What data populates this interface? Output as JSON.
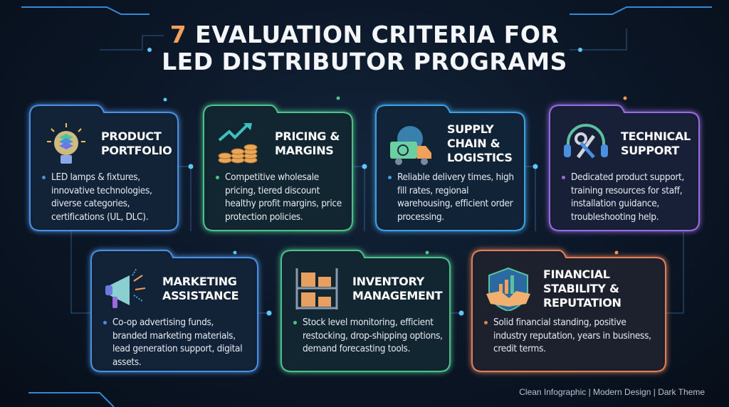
{
  "title": {
    "number": "7",
    "line1": "EVALUATION CRITERIA FOR",
    "line2": "LED DISTRIBUTOR PROGRAMS"
  },
  "cards": [
    {
      "title": "Product Portfolio",
      "text": "LED lamps & fixtures, innovative technologies, diverse categories, certifications (UL, DLC).",
      "color": "#4a8fe0",
      "icon": "lightbulb-icon"
    },
    {
      "title": "Pricing & Margins",
      "text": "Competitive wholesale pricing, tiered discount healthy profit margins, price protection policies.",
      "color": "#4cc28a",
      "icon": "coins-growth-icon"
    },
    {
      "title": "Supply Chain & Logistics",
      "text": "Reliable delivery times, high fill rates, regional warehousing, efficient order processing.",
      "color": "#3f9fe0",
      "icon": "delivery-truck-globe-icon"
    },
    {
      "title": "Technical Support",
      "text": "Dedicated product support, training resources for staff, installation guidance, troubleshooting help.",
      "color": "#9a6ae0",
      "icon": "headset-tools-icon"
    },
    {
      "title": "Marketing Assistance",
      "text": "Co-op advertising funds, branded marketing materials, lead generation support, digital assets.",
      "color": "#4a8fe0",
      "icon": "megaphone-icon"
    },
    {
      "title": "Inventory Management",
      "text": "Stock level monitoring, efficient restocking, drop-shipping options, demand forecasting tools.",
      "color": "#4cc28a",
      "icon": "warehouse-shelves-icon"
    },
    {
      "title": "Financial Stability & Reputation",
      "text": "Solid financial standing, positive industry reputation, years in business, credit terms.",
      "color": "#e0805a",
      "icon": "shield-handshake-icon"
    }
  ],
  "footer": "Clean Infographic | Modern Design | Dark Theme"
}
